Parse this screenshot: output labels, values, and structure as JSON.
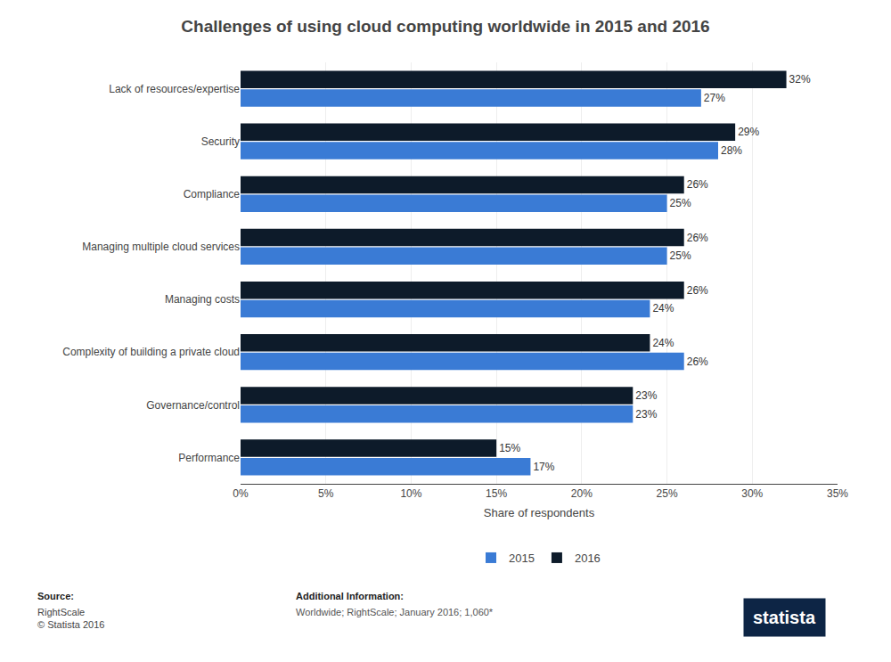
{
  "chart_data": {
    "type": "bar",
    "orientation": "horizontal",
    "title": "Challenges of using cloud computing worldwide in 2015 and 2016",
    "categories": [
      "Lack of resources/expertise",
      "Security",
      "Compliance",
      "Managing multiple cloud services",
      "Managing costs",
      "Complexity of building a private cloud",
      "Governance/control",
      "Performance"
    ],
    "series": [
      {
        "name": "2015",
        "color": "#3a7bd5",
        "values": [
          27,
          28,
          25,
          25,
          24,
          26,
          23,
          17
        ],
        "value_labels": [
          "27%",
          "28%",
          "25%",
          "25%",
          "24%",
          "26%",
          "23%",
          "17%"
        ]
      },
      {
        "name": "2016",
        "color": "#0d1b2a",
        "values": [
          32,
          29,
          26,
          26,
          26,
          24,
          23,
          15
        ],
        "value_labels": [
          "32%",
          "29%",
          "26%",
          "26%",
          "26%",
          "24%",
          "23%",
          "15%"
        ]
      }
    ],
    "xlabel": "Share of respondents",
    "xlim": [
      0,
      35
    ],
    "xticks": [
      {
        "value": 0,
        "label": "0%"
      },
      {
        "value": 5,
        "label": "5%"
      },
      {
        "value": 10,
        "label": "10%"
      },
      {
        "value": 15,
        "label": "15%"
      },
      {
        "value": 20,
        "label": "20%"
      },
      {
        "value": 25,
        "label": "25%"
      },
      {
        "value": 30,
        "label": "30%"
      },
      {
        "value": 35,
        "label": "35%"
      }
    ],
    "grid": true,
    "legend": "bottom",
    "data_labels": true,
    "annotations": [
      "Source:",
      "RightScale\n© Statista 2016",
      "Additional Information:",
      "Worldwide; RightScale; January 2016; 1,060*",
      "statista"
    ]
  }
}
